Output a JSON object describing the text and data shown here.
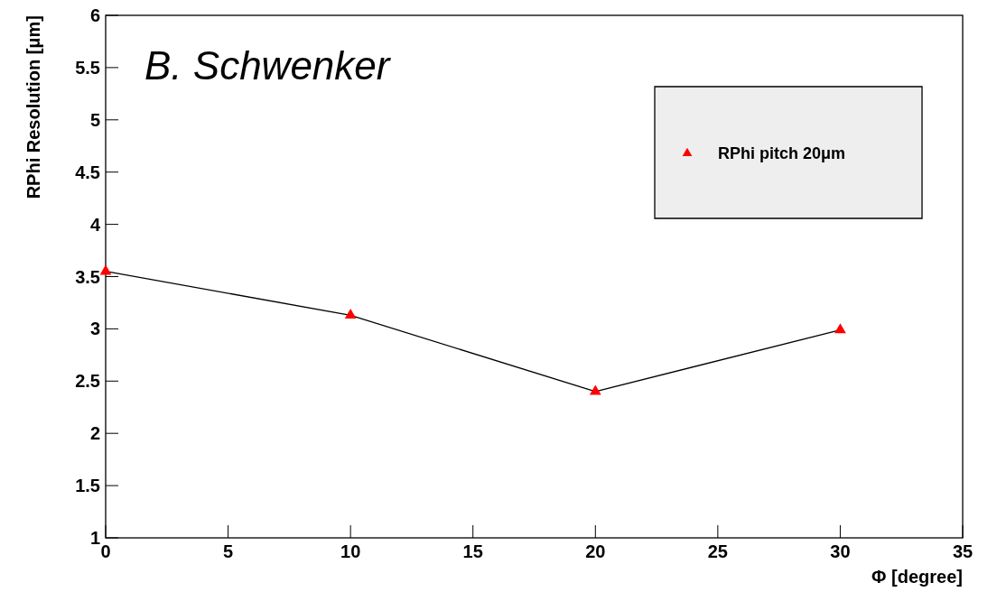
{
  "chart_data": {
    "type": "line",
    "xlabel": "Φ [degree]",
    "ylabel": "RPhi Resolution [μm]",
    "annotations": [
      "B. Schwenker"
    ],
    "x": [
      0,
      10,
      20,
      30
    ],
    "series": [
      {
        "name": "RPhi pitch 20μm",
        "color": "#ff0000",
        "values": [
          3.55,
          3.13,
          2.4,
          2.99
        ]
      }
    ],
    "xlim": [
      0,
      35
    ],
    "xticks": [
      0,
      5,
      10,
      15,
      20,
      25,
      30,
      35
    ],
    "ylim": [
      1,
      6
    ],
    "yticks": [
      1,
      1.5,
      2,
      2.5,
      3,
      3.5,
      4,
      4.5,
      5,
      5.5,
      6
    ],
    "grid": false,
    "legend": "top right",
    "marker": "triangle",
    "line_style": "solid"
  }
}
